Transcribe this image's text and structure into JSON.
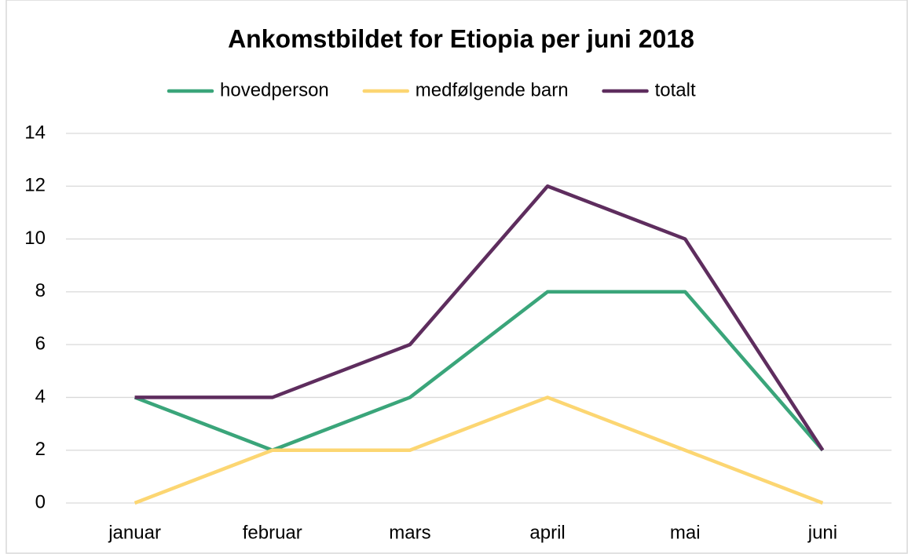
{
  "chart_data": {
    "type": "line",
    "title": "Ankomstbildet for Etiopia per juni 2018",
    "categories": [
      "januar",
      "februar",
      "mars",
      "april",
      "mai",
      "juni"
    ],
    "series": [
      {
        "name": "hovedperson",
        "color": "#3aa57a",
        "values": [
          4,
          2,
          4,
          8,
          8,
          2
        ]
      },
      {
        "name": "medfølgende barn",
        "color": "#fcd672",
        "values": [
          0,
          2,
          2,
          4,
          2,
          0
        ]
      },
      {
        "name": "totalt",
        "color": "#5e2d5e",
        "values": [
          4,
          4,
          6,
          12,
          10,
          2
        ]
      }
    ],
    "ylim": [
      0,
      14
    ],
    "yticks": [
      0,
      2,
      4,
      6,
      8,
      10,
      12,
      14
    ],
    "grid": true,
    "legend": "top"
  }
}
